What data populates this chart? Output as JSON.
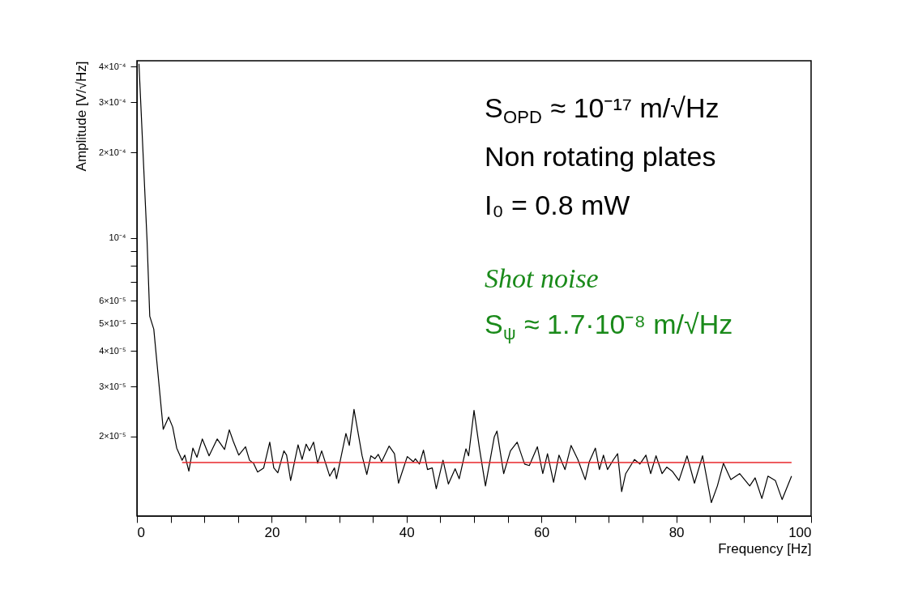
{
  "chart_data": {
    "type": "line",
    "xlabel": "Frequency [Hz]",
    "ylabel": "Amplitude [V/√Hz]",
    "xlim": [
      0,
      100
    ],
    "xticks": [
      0,
      {
        "value": 5,
        "label": null
      },
      {
        "value": 10,
        "label": null
      },
      {
        "value": 15,
        "label": null
      },
      20,
      {
        "value": 25,
        "label": null
      },
      {
        "value": 30,
        "label": null
      },
      {
        "value": 35,
        "label": null
      },
      40,
      {
        "value": 45,
        "label": null
      },
      {
        "value": 50,
        "label": null
      },
      {
        "value": 55,
        "label": null
      },
      60,
      {
        "value": 65,
        "label": null
      },
      {
        "value": 70,
        "label": null
      },
      {
        "value": 75,
        "label": null
      },
      80,
      {
        "value": 85,
        "label": null
      },
      {
        "value": 90,
        "label": null
      },
      {
        "value": 95,
        "label": null
      },
      100
    ],
    "ylim": [
      1.05e-05,
      0.00042
    ],
    "log": true,
    "yticks": [
      {
        "value": 2e-05,
        "label": "2×10⁻⁵"
      },
      {
        "value": 3e-05,
        "label": "3×10⁻⁵"
      },
      {
        "value": 4e-05,
        "label": "4×10⁻⁵"
      },
      {
        "value": 5e-05,
        "label": "5×10⁻⁵"
      },
      {
        "value": 6e-05,
        "label": "6×10⁻⁵"
      },
      {
        "value": 7e-05,
        "label": null
      },
      {
        "value": 8e-05,
        "label": null
      },
      {
        "value": 9e-05,
        "label": null
      },
      {
        "value": 0.0001,
        "label": "10⁻⁴"
      },
      {
        "value": 0.0002,
        "label": "2×10⁻⁴"
      },
      {
        "value": 0.0003,
        "label": "3×10⁻⁴"
      },
      {
        "value": 0.0004,
        "label": "4×10⁻⁴"
      }
    ],
    "grid": false,
    "marker": "none",
    "line_style": "solid",
    "series": [
      {
        "color": "#000000",
        "x": [
          0.3,
          1.5,
          1.9,
          2.5,
          3.9,
          4.7,
          5.3,
          5.9,
          6.7,
          7.1,
          7.7,
          8.3,
          8.9,
          9.7,
          10.7,
          11.9,
          13.0,
          13.7,
          14.3,
          15.1,
          16.1,
          16.7,
          17.3,
          17.9,
          18.8,
          19.7,
          20.3,
          20.9,
          21.8,
          22.2,
          22.8,
          23.9,
          24.5,
          25.1,
          25.6,
          26.2,
          26.8,
          27.4,
          28.6,
          29.3,
          29.6,
          31.0,
          31.5,
          32.2,
          33.4,
          34.1,
          34.7,
          35.3,
          35.8,
          36.3,
          37.4,
          38.2,
          38.8,
          40.1,
          41.0,
          41.3,
          41.9,
          42.5,
          43.1,
          43.8,
          44.4,
          45.4,
          46.2,
          47.2,
          47.8,
          48.8,
          49.2,
          50.0,
          50.8,
          51.7,
          53.0,
          53.4,
          54.4,
          55.4,
          56.4,
          57.5,
          58.2,
          59.4,
          60.2,
          60.9,
          61.8,
          62.6,
          63.5,
          64.4,
          65.4,
          66.5,
          67.1,
          68.0,
          68.6,
          69.2,
          69.8,
          70.7,
          71.3,
          71.9,
          72.5,
          73.8,
          74.6,
          75.5,
          76.2,
          77.0,
          77.9,
          78.6,
          79.4,
          80.4,
          81.6,
          82.7,
          83.9,
          85.2,
          86.1,
          87.0,
          88.1,
          89.4,
          90.9,
          91.7,
          92.7,
          93.6,
          94.7,
          95.7,
          97.1
        ],
        "values": [
          0.00041,
          9.8e-05,
          5.3e-05,
          4.77e-05,
          2.12e-05,
          2.34e-05,
          2.16e-05,
          1.82e-05,
          1.65e-05,
          1.72e-05,
          1.51e-05,
          1.82e-05,
          1.69e-05,
          1.96e-05,
          1.71e-05,
          1.96e-05,
          1.8e-05,
          2.11e-05,
          1.92e-05,
          1.72e-05,
          1.84e-05,
          1.65e-05,
          1.61e-05,
          1.5e-05,
          1.55e-05,
          1.91e-05,
          1.55e-05,
          1.49e-05,
          1.78e-05,
          1.72e-05,
          1.4e-05,
          1.87e-05,
          1.66e-05,
          1.88e-05,
          1.78e-05,
          1.91e-05,
          1.61e-05,
          1.78e-05,
          1.45e-05,
          1.55e-05,
          1.42e-05,
          2.05e-05,
          1.86e-05,
          2.49e-05,
          1.71e-05,
          1.47e-05,
          1.71e-05,
          1.67e-05,
          1.73e-05,
          1.63e-05,
          1.85e-05,
          1.74e-05,
          1.37e-05,
          1.7e-05,
          1.63e-05,
          1.67e-05,
          1.6e-05,
          1.79e-05,
          1.53e-05,
          1.55e-05,
          1.31e-05,
          1.65e-05,
          1.36e-05,
          1.54e-05,
          1.42e-05,
          1.81e-05,
          1.71e-05,
          2.47e-05,
          1.82e-05,
          1.34e-05,
          1.99e-05,
          2.09e-05,
          1.48e-05,
          1.78e-05,
          1.91e-05,
          1.6e-05,
          1.58e-05,
          1.84e-05,
          1.48e-05,
          1.74e-05,
          1.38e-05,
          1.72e-05,
          1.53e-05,
          1.86e-05,
          1.66e-05,
          1.41e-05,
          1.63e-05,
          1.82e-05,
          1.53e-05,
          1.72e-05,
          1.53e-05,
          1.66e-05,
          1.74e-05,
          1.28e-05,
          1.48e-05,
          1.66e-05,
          1.6e-05,
          1.72e-05,
          1.48e-05,
          1.71e-05,
          1.48e-05,
          1.56e-05,
          1.51e-05,
          1.4e-05,
          1.71e-05,
          1.37e-05,
          1.71e-05,
          1.17e-05,
          1.34e-05,
          1.61e-05,
          1.41e-05,
          1.48e-05,
          1.34e-05,
          1.43e-05,
          1.21e-05,
          1.45e-05,
          1.4e-05,
          1.2e-05,
          1.45e-05
        ]
      },
      {
        "color": "#e8262a",
        "x": [
          6.7,
          97.1
        ],
        "values": [
          1.62e-05,
          1.62e-05
        ]
      }
    ],
    "annotations": [
      "S$_{OPD}$ ≈ 10⁻¹⁷ m/√Hz",
      "Non rotating plates",
      "I₀ = 0.8 mW",
      "Shot noise",
      "S$_{ψ}$ ≈ 1.7·10⁻⁸ m/√Hz"
    ]
  }
}
